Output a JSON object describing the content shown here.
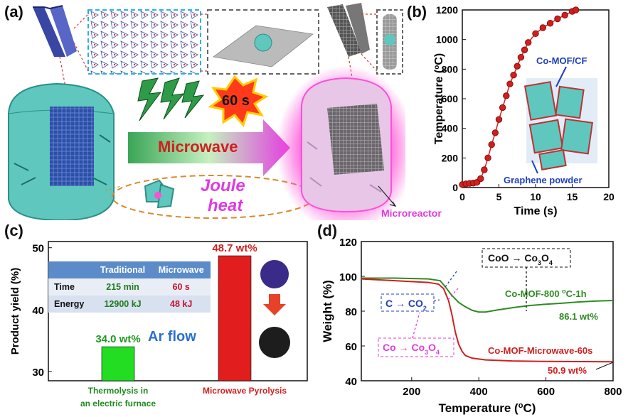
{
  "panels": {
    "a": "(a)",
    "b": "(b)",
    "c": "(c)",
    "d": "(d)"
  },
  "panel_a": {
    "time_badge": "60 s",
    "arrow_label": "Microwave",
    "joule_line1": "Joule",
    "joule_line2": "heat",
    "microreactor": "Microreactor",
    "colors": {
      "cloth": "#5fc7bd",
      "arrow_start": "#3aa556",
      "arrow_end": "#e33de0",
      "glow": "#ff4fd8"
    }
  },
  "chart_b": {
    "type": "line",
    "xlabel": "Time (s)",
    "ylabel": "Temperature (",
    "ylabel_unit": "C)",
    "xlim": [
      0,
      20
    ],
    "ylim": [
      0,
      1200
    ],
    "xticks": [
      "0",
      "5",
      "10",
      "15",
      "20"
    ],
    "yticks": [
      "0",
      "200",
      "400",
      "600",
      "800",
      "1000",
      "1200"
    ],
    "annotation_top": "Co-MOF/CF",
    "annotation_bottom": "Graphene powder",
    "color": "#d11f1f",
    "points": [
      [
        0,
        20
      ],
      [
        0.5,
        25
      ],
      [
        1,
        28
      ],
      [
        1.5,
        30
      ],
      [
        2,
        35
      ],
      [
        2.5,
        60
      ],
      [
        3,
        120
      ],
      [
        3.5,
        200
      ],
      [
        4,
        290
      ],
      [
        4.5,
        370
      ],
      [
        5,
        460
      ],
      [
        5.5,
        540
      ],
      [
        6,
        620
      ],
      [
        6.5,
        700
      ],
      [
        7,
        760
      ],
      [
        7.5,
        820
      ],
      [
        8,
        880
      ],
      [
        8.5,
        930
      ],
      [
        9,
        980
      ],
      [
        10,
        1040
      ],
      [
        11,
        1080
      ],
      [
        12,
        1110
      ],
      [
        13,
        1140
      ],
      [
        14,
        1165
      ],
      [
        15,
        1190
      ],
      [
        15.5,
        1200
      ]
    ]
  },
  "chart_c": {
    "type": "bar",
    "ylabel": "Product yield (%)",
    "ylim": [
      28.5,
      51
    ],
    "yticks": [
      "30",
      "40",
      "50"
    ],
    "bars": [
      {
        "value": 34.0,
        "label": "34.0 wt%",
        "name_line1": "Thermolysis in",
        "name_line2": "an electric furnace",
        "color": "#22dd22"
      },
      {
        "value": 48.7,
        "label": "48.7 wt%",
        "name_line1": "Microwave Pyrolysis",
        "name_line2": "",
        "color": "#e11d1d"
      }
    ],
    "ar_flow": "Ar flow",
    "table": {
      "headers": [
        "",
        "Traditional",
        "Microwave"
      ],
      "rows": [
        [
          "Time",
          "215 min",
          "60 s"
        ],
        [
          "Energy",
          "12900 kJ",
          "48 kJ"
        ]
      ]
    }
  },
  "chart_d": {
    "type": "line",
    "xlabel": "Temperature (",
    "xlabel_unit": "C)",
    "ylabel": "Weight (%)",
    "xlim": [
      50,
      800
    ],
    "ylim": [
      40,
      120
    ],
    "xticks": [
      "200",
      "400",
      "600",
      "800"
    ],
    "yticks": [
      "40",
      "60",
      "80",
      "100",
      "120"
    ],
    "series": [
      {
        "name": "Co-MOF-800 °C-1h",
        "color": "#2e8b22",
        "points": [
          [
            50,
            99
          ],
          [
            150,
            99
          ],
          [
            250,
            98.5
          ],
          [
            285,
            97.5
          ],
          [
            300,
            94
          ],
          [
            320,
            89
          ],
          [
            340,
            85
          ],
          [
            360,
            82.5
          ],
          [
            380,
            80.5
          ],
          [
            400,
            79.5
          ],
          [
            420,
            79.5
          ],
          [
            450,
            80.5
          ],
          [
            500,
            82
          ],
          [
            550,
            83.2
          ],
          [
            600,
            84
          ],
          [
            650,
            84.6
          ],
          [
            700,
            85.3
          ],
          [
            750,
            85.8
          ],
          [
            800,
            86.1
          ]
        ]
      },
      {
        "name": "Co-MOF-Microwave-60s",
        "color": "#d11f1f",
        "points": [
          [
            50,
            98.5
          ],
          [
            150,
            97.5
          ],
          [
            250,
            96.5
          ],
          [
            280,
            95.5
          ],
          [
            295,
            93
          ],
          [
            310,
            86
          ],
          [
            320,
            78
          ],
          [
            330,
            68
          ],
          [
            340,
            61
          ],
          [
            350,
            57
          ],
          [
            360,
            54.5
          ],
          [
            380,
            53
          ],
          [
            420,
            52
          ],
          [
            500,
            51.4
          ],
          [
            600,
            51.1
          ],
          [
            700,
            51
          ],
          [
            800,
            50.9
          ]
        ]
      }
    ],
    "labels": {
      "co_mof_800": "Co-MOF-800 ",
      "co_mof_800_tail": "C-1h",
      "end_green": "86.1 wt%",
      "co_mof_mw": "Co-MOF-Microwave-60s",
      "end_red": "50.9 wt%",
      "c_co2": "C ",
      "c_co2_tail": "CO",
      "co_co3o4": "Co ",
      "co_co3o4_tail": "Co",
      "coo_co3o4": "CoO ",
      "coo_co3o4_tail": "Co"
    }
  }
}
